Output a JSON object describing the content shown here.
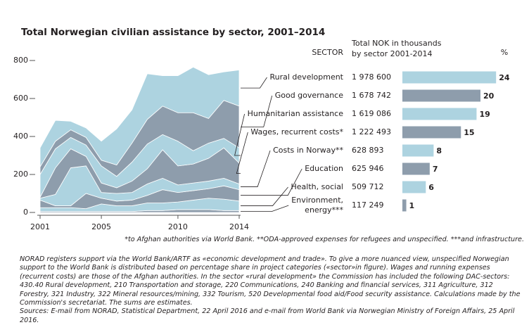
{
  "chart_data": [
    {
      "type": "area",
      "title": "Total Norwegian civilian assistance by sector, 2001–2014",
      "x": [
        2001,
        2002,
        2003,
        2004,
        2005,
        2006,
        2007,
        2008,
        2009,
        2010,
        2011,
        2012,
        2013,
        2014
      ],
      "xlim": [
        2001,
        2014
      ],
      "xticks": [
        2001,
        2005,
        2010,
        2014
      ],
      "ylim": [
        0,
        800
      ],
      "yticks": [
        0,
        200,
        400,
        600,
        800
      ],
      "series": [
        {
          "color": "#8e9dac",
          "values": [
            5,
            5,
            5,
            5,
            5,
            5,
            5,
            10,
            10,
            15,
            15,
            15,
            10,
            10
          ]
        },
        {
          "color": "#add3e0",
          "values": [
            20,
            20,
            20,
            15,
            40,
            30,
            30,
            40,
            40,
            40,
            50,
            60,
            60,
            50
          ]
        },
        {
          "color": "#8e9dac",
          "values": [
            40,
            10,
            10,
            80,
            30,
            25,
            30,
            40,
            70,
            50,
            50,
            50,
            70,
            60
          ]
        },
        {
          "color": "#add3e0",
          "values": [
            10,
            60,
            200,
            145,
            30,
            40,
            40,
            60,
            60,
            40,
            40,
            40,
            40,
            30
          ]
        },
        {
          "color": "#8e9dac",
          "values": [
            5,
            140,
            100,
            50,
            50,
            30,
            60,
            80,
            150,
            100,
            100,
            120,
            160,
            110
          ]
        },
        {
          "color": "#add3e0",
          "values": [
            120,
            100,
            60,
            60,
            90,
            60,
            100,
            130,
            80,
            130,
            70,
            80,
            50,
            80
          ]
        },
        {
          "color": "#8e9dac",
          "values": [
            40,
            40,
            40,
            40,
            30,
            60,
            100,
            130,
            150,
            150,
            200,
            130,
            200,
            220
          ]
        },
        {
          "color": "#add3e0",
          "values": [
            100,
            110,
            45,
            50,
            100,
            190,
            175,
            240,
            160,
            195,
            240,
            230,
            150,
            190
          ]
        }
      ]
    },
    {
      "type": "bar",
      "sector_header": "SECTOR",
      "total_header": [
        "Total NOK in thousands",
        "by sector 2001-2014"
      ],
      "percent_header": "%",
      "categories": [
        [
          "Rural development"
        ],
        [
          "Good governance"
        ],
        [
          "Humanitarian assistance"
        ],
        [
          "Wages, recurrent costs*"
        ],
        [
          "Costs in Norway**"
        ],
        [
          "Education"
        ],
        [
          "Health, social"
        ],
        [
          "Environment,",
          "energy***"
        ]
      ],
      "totals": [
        "1 978 600",
        "1 678 742",
        "1 619 086",
        "1 222 493",
        "628 893",
        "625 946",
        "509 712",
        "117 249"
      ],
      "values": [
        24,
        20,
        19,
        15,
        8,
        7,
        6,
        1
      ],
      "colors": [
        "#add3e0",
        "#8e9dac",
        "#add3e0",
        "#8e9dac",
        "#add3e0",
        "#8e9dac",
        "#add3e0",
        "#8e9dac"
      ]
    }
  ],
  "footnote": "*to Afghan authorities via World Bank.  **ODA-approved expenses for refugees and unspecified.  ***and infrastructure.",
  "note": "NORAD registers support via the World Bank/ARTF as «economic development and trade». To give a more nuanced view, unspecified Norwegian support to the World Bank is distributed based on percentage share in project categories («sector»in figure). Wages and running expenses (recurrent costs) are those of the Afghan authorities. In the sector «rural development» the Commission has included the following DAC-sectors: 430.40 Rural development, 210 Transportation and storage, 220 Communications, 240 Banking and financial services, 311 Agriculture, 312 Forestry, 321 Industry, 322 Mineral resources/mining, 332 Tourism, 520 Developmental food aid/Food security assistance. Calculations made by the Commission's secretariat. The sums are estimates.",
  "source": "Sources: E-mail from NORAD, Statistical Department, 22 April 2016 and e-mail from World Bank via Norwegian Ministry of Foreign Affairs, 25 April 2016."
}
